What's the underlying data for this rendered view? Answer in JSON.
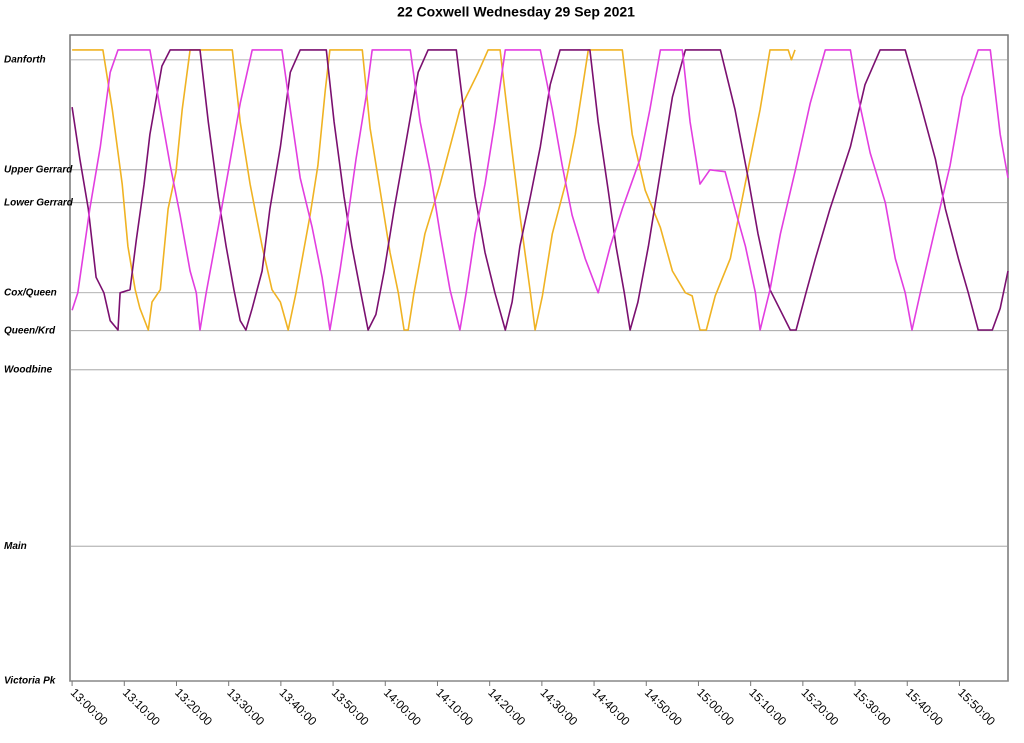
{
  "chart_data": {
    "type": "line",
    "title": "22 Coxwell Wednesday 29 Sep 2021",
    "xlim": [
      779.6,
      959.3
    ],
    "xticks": [
      {
        "value": 780,
        "label": "13:00:00"
      },
      {
        "value": 790,
        "label": "13:10:00"
      },
      {
        "value": 800,
        "label": "13:20:00"
      },
      {
        "value": 810,
        "label": "13:30:00"
      },
      {
        "value": 820,
        "label": "13:40:00"
      },
      {
        "value": 830,
        "label": "13:50:00"
      },
      {
        "value": 840,
        "label": "14:00:00"
      },
      {
        "value": 850,
        "label": "14:10:00"
      },
      {
        "value": 860,
        "label": "14:20:00"
      },
      {
        "value": 870,
        "label": "14:30:00"
      },
      {
        "value": 880,
        "label": "14:40:00"
      },
      {
        "value": 890,
        "label": "14:50:00"
      },
      {
        "value": 900,
        "label": "15:00:00"
      },
      {
        "value": 910,
        "label": "15:10:00"
      },
      {
        "value": 920,
        "label": "15:20:00"
      },
      {
        "value": 930,
        "label": "15:30:00"
      },
      {
        "value": 940,
        "label": "15:40:00"
      },
      {
        "value": 950,
        "label": "15:50:00"
      }
    ],
    "ylim": [
      0,
      10.4
    ],
    "yticks": [
      {
        "value": 10.0,
        "label": "Danforth"
      },
      {
        "value": 8.23,
        "label": "Upper Gerrard"
      },
      {
        "value": 7.7,
        "label": "Lower Gerrard"
      },
      {
        "value": 6.25,
        "label": "Cox/Queen"
      },
      {
        "value": 5.64,
        "label": "Queen/Krd"
      },
      {
        "value": 5.01,
        "label": "Woodbine"
      },
      {
        "value": 2.17,
        "label": "Main"
      },
      {
        "value": 0,
        "label": "Victoria Pk"
      }
    ],
    "grid": true,
    "series": [
      {
        "color": "#f0b323",
        "x": [
          780.0,
          785.9,
          787.7,
          789.6,
          790.7,
          792.1,
          793.0,
          794.6,
          795.3,
          796.9,
          798.4,
          799.9,
          801.1,
          802.6,
          810.7,
          812.2,
          814.1,
          816.4,
          818.3,
          819.9,
          821.4,
          822.9,
          825.6,
          827.1,
          828.5,
          829.4,
          835.6,
          837.1,
          839.0,
          840.9,
          842.5,
          843.6,
          844.4,
          845.5,
          847.6,
          850.5,
          854.3,
          857.8,
          859.7,
          862.0,
          863.9,
          865.8,
          867.8,
          868.7,
          870.1,
          872.0,
          874.5,
          876.4,
          878.9,
          885.4,
          887.3,
          889.8,
          892.7,
          895.0,
          897.5,
          898.8,
          900.3,
          901.5,
          903.2,
          906.1,
          908.0,
          909.9,
          911.8,
          913.7,
          917.2,
          917.8,
          918.5
        ],
        "y": [
          10.16,
          10.16,
          9.2,
          8.0,
          7.0,
          6.3,
          6.0,
          5.65,
          6.1,
          6.3,
          7.6,
          8.2,
          9.2,
          10.16,
          10.16,
          9.0,
          8.0,
          7.0,
          6.3,
          6.1,
          5.65,
          6.25,
          7.5,
          8.3,
          9.5,
          10.16,
          10.16,
          8.9,
          7.9,
          6.9,
          6.25,
          5.65,
          5.65,
          6.25,
          7.2,
          8.0,
          9.2,
          9.8,
          10.16,
          10.16,
          8.8,
          7.5,
          6.25,
          5.65,
          6.2,
          7.2,
          8.0,
          8.8,
          10.16,
          10.16,
          8.8,
          7.9,
          7.3,
          6.6,
          6.25,
          6.2,
          5.65,
          5.65,
          6.2,
          6.8,
          7.6,
          8.4,
          9.2,
          10.16,
          10.16,
          10.0,
          10.16
        ]
      },
      {
        "color": "#7b1070",
        "x": [
          780.0,
          781.5,
          783.1,
          784.6,
          786.1,
          787.3,
          788.8,
          789.2,
          791.1,
          792.3,
          793.8,
          794.9,
          797.2,
          798.8,
          804.5,
          806.1,
          808.0,
          809.5,
          811.0,
          812.2,
          813.3,
          814.5,
          816.4,
          817.9,
          819.9,
          821.8,
          823.7,
          828.7,
          830.2,
          832.1,
          833.6,
          835.2,
          836.7,
          838.2,
          839.8,
          841.7,
          843.6,
          846.3,
          848.2,
          853.6,
          855.3,
          857.2,
          859.1,
          861.0,
          863.0,
          864.3,
          865.8,
          867.8,
          869.7,
          871.6,
          873.5,
          879.2,
          880.8,
          882.7,
          884.2,
          885.8,
          886.9,
          888.4,
          890.4,
          892.7,
          895.0,
          897.5,
          904.2,
          907.0,
          909.5,
          911.4,
          913.7,
          917.6,
          918.7,
          920.6,
          922.4,
          925.2,
          929.1,
          931.9,
          934.8,
          939.6,
          942.5,
          945.4,
          947.3,
          949.8,
          951.7,
          953.6,
          956.3,
          957.8,
          959.3
        ],
        "y": [
          9.24,
          8.4,
          7.6,
          6.5,
          6.25,
          5.8,
          5.65,
          6.25,
          6.3,
          7.1,
          8.0,
          8.8,
          9.9,
          10.16,
          10.16,
          9.0,
          7.8,
          7.0,
          6.3,
          5.8,
          5.65,
          6.0,
          6.6,
          7.6,
          8.6,
          9.8,
          10.16,
          10.16,
          9.0,
          7.8,
          7.0,
          6.3,
          5.65,
          5.9,
          6.6,
          7.6,
          8.5,
          9.8,
          10.16,
          10.16,
          9.0,
          7.8,
          6.9,
          6.25,
          5.65,
          6.1,
          7.0,
          7.8,
          8.6,
          9.6,
          10.16,
          10.16,
          9.0,
          7.9,
          7.0,
          6.25,
          5.65,
          6.1,
          7.0,
          8.2,
          9.4,
          10.16,
          10.16,
          9.2,
          8.1,
          7.2,
          6.3,
          5.65,
          5.65,
          6.25,
          6.8,
          7.6,
          8.6,
          9.6,
          10.16,
          10.16,
          9.3,
          8.4,
          7.6,
          6.8,
          6.25,
          5.65,
          5.65,
          6.0,
          6.6
        ]
      },
      {
        "color": "#e23ee0",
        "x": [
          780.0,
          781.1,
          783.4,
          785.4,
          787.3,
          788.8,
          794.9,
          796.9,
          798.8,
          800.7,
          802.6,
          803.8,
          804.5,
          805.7,
          808.0,
          809.9,
          812.2,
          814.5,
          820.2,
          821.8,
          823.7,
          826.0,
          827.9,
          829.4,
          831.3,
          832.9,
          834.4,
          836.3,
          837.5,
          844.8,
          846.7,
          848.6,
          850.5,
          852.4,
          854.3,
          855.5,
          857.2,
          859.1,
          861.0,
          863.0,
          869.7,
          872.0,
          873.9,
          875.8,
          878.3,
          880.8,
          883.1,
          885.4,
          888.8,
          890.7,
          892.7,
          896.9,
          898.4,
          900.3,
          902.2,
          905.1,
          907.0,
          909.0,
          910.9,
          911.8,
          913.7,
          915.7,
          918.5,
          921.4,
          924.3,
          929.1,
          930.6,
          932.9,
          935.8,
          937.7,
          939.6,
          940.9,
          942.5,
          945.4,
          948.2,
          950.5,
          953.6,
          955.9,
          957.8,
          959.3
        ],
        "y": [
          5.97,
          6.25,
          7.6,
          8.6,
          9.8,
          10.16,
          10.16,
          9.2,
          8.3,
          7.5,
          6.6,
          6.25,
          5.65,
          6.25,
          7.3,
          8.2,
          9.3,
          10.16,
          10.16,
          9.2,
          8.1,
          7.3,
          6.5,
          5.65,
          6.6,
          7.5,
          8.4,
          9.4,
          10.16,
          10.16,
          9.0,
          8.2,
          7.2,
          6.3,
          5.65,
          6.25,
          7.2,
          8.0,
          9.0,
          10.16,
          10.16,
          9.2,
          8.3,
          7.5,
          6.8,
          6.25,
          7.0,
          7.6,
          8.4,
          9.2,
          10.16,
          10.16,
          9.0,
          8.0,
          8.23,
          8.2,
          7.6,
          7.0,
          6.25,
          5.65,
          6.3,
          7.2,
          8.2,
          9.3,
          10.16,
          10.16,
          9.4,
          8.5,
          7.7,
          6.8,
          6.25,
          5.65,
          6.25,
          7.3,
          8.3,
          9.4,
          10.16,
          10.16,
          8.8,
          8.1
        ]
      }
    ]
  }
}
